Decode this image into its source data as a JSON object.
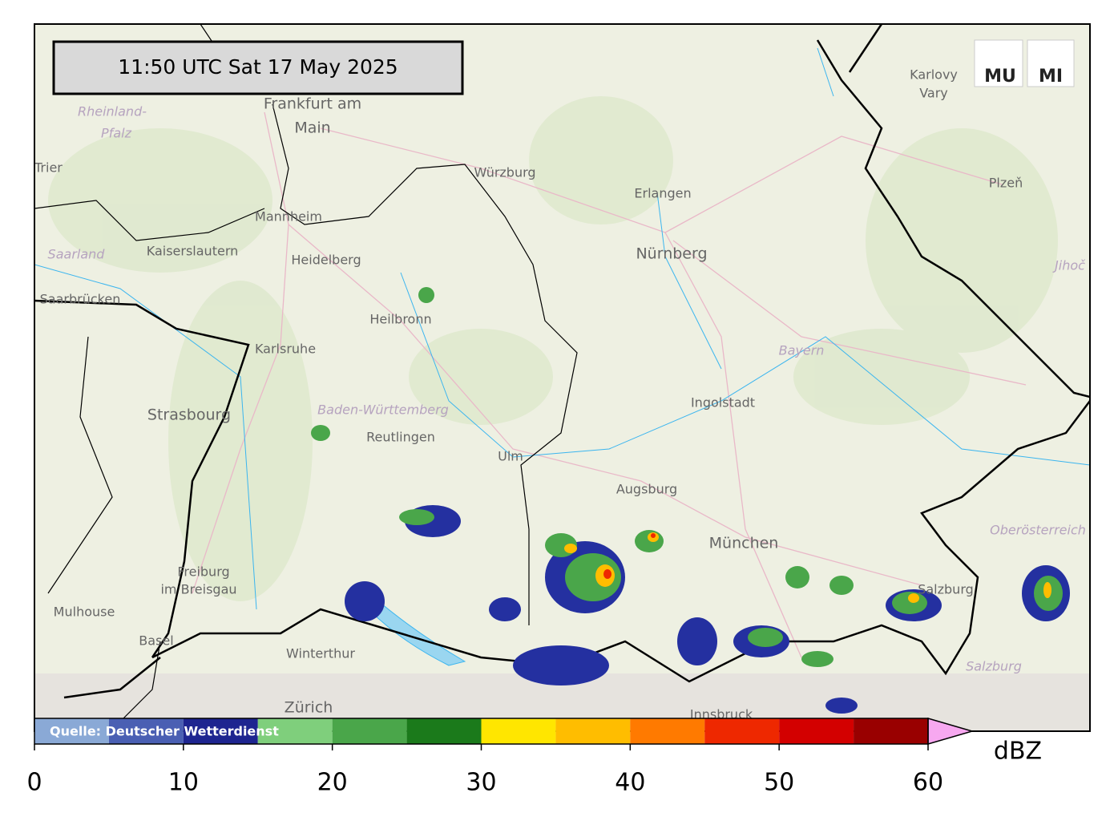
{
  "timestamp": "11:50 UTC  Sat 17 May 2025",
  "source": "Quelle: Deutscher Wetterdienst",
  "logos": [
    "MU",
    "MI"
  ],
  "places": [
    "Frankfurt am",
    "Main",
    "Rheinland-",
    "Pfalz",
    "Trier",
    "Würzburg",
    "Erlangen",
    "Nürnberg",
    "Mannheim",
    "Kaiserslautern",
    "Heidelberg",
    "Saarland",
    "Saarbrücken",
    "Heilbronn",
    "Karlsruhe",
    "Strasbourg",
    "Baden-Württemberg",
    "Reutlingen",
    "Ulm",
    "Augsburg",
    "Ingolstadt",
    "Bayern",
    "München",
    "Freiburg",
    "im Breisgau",
    "Mulhouse",
    "Basel",
    "Winterthur",
    "Zürich",
    "Innsbruck",
    "Salzburg",
    "Salzburg",
    "Oberösterreich",
    "Karlovy",
    "Vary",
    "Plzeň",
    "Jihoč"
  ],
  "colorbar": {
    "unit": "dBZ",
    "lim": [
      0,
      60
    ],
    "ticks": [
      0,
      10,
      20,
      30,
      40,
      50,
      60
    ],
    "bounds": [
      0,
      5,
      10,
      15,
      20,
      25,
      30,
      35,
      40,
      45,
      50,
      55,
      60
    ],
    "colors": [
      "#8aa9d6",
      "#4a5fb3",
      "#1e2590",
      "#7fcf7c",
      "#4aa64a",
      "#1b7a1b",
      "#ffe600",
      "#ffbd00",
      "#ff7a00",
      "#ee2800",
      "#d30000",
      "#990000"
    ],
    "extend_color": "#f7a8f0"
  }
}
